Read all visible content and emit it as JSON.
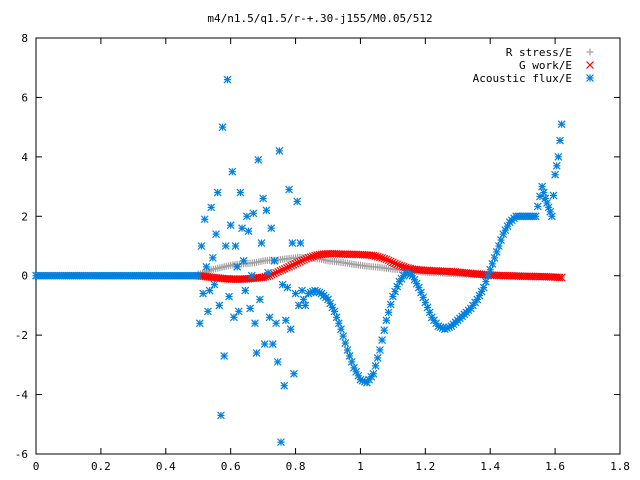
{
  "chart_data": {
    "type": "scatter",
    "title": "m4/n1.5/q1.5/r-+.30-j155/M0.05/512",
    "xlabel": "",
    "ylabel": "",
    "xlim": [
      0,
      1.8
    ],
    "ylim": [
      -6,
      8
    ],
    "x_ticks": [
      "0",
      "0.2",
      "0.4",
      "0.6",
      "0.8",
      "1",
      "1.2",
      "1.4",
      "1.6",
      "1.8"
    ],
    "y_ticks": [
      "-6",
      "-4",
      "-2",
      "0",
      "2",
      "4",
      "6",
      "8"
    ],
    "legend_position": "top-right",
    "grid": false,
    "series": [
      {
        "name": "R stress/E",
        "marker": "+",
        "color": "#a0a0a0",
        "points": [
          [
            0.5,
            0.05
          ],
          [
            0.52,
            0.1
          ],
          [
            0.54,
            0.2
          ],
          [
            0.56,
            0.25
          ],
          [
            0.58,
            0.3
          ],
          [
            0.6,
            0.35
          ],
          [
            0.62,
            0.38
          ],
          [
            0.64,
            0.4
          ],
          [
            0.66,
            0.42
          ],
          [
            0.68,
            0.45
          ],
          [
            0.7,
            0.5
          ],
          [
            0.72,
            0.52
          ],
          [
            0.74,
            0.52
          ],
          [
            0.76,
            0.55
          ],
          [
            0.78,
            0.58
          ],
          [
            0.8,
            0.6
          ],
          [
            0.82,
            0.62
          ],
          [
            0.84,
            0.6
          ],
          [
            0.86,
            0.58
          ],
          [
            0.88,
            0.55
          ],
          [
            0.9,
            0.5
          ],
          [
            0.92,
            0.48
          ],
          [
            0.94,
            0.45
          ],
          [
            0.96,
            0.42
          ],
          [
            0.98,
            0.38
          ],
          [
            1.0,
            0.35
          ],
          [
            1.02,
            0.32
          ],
          [
            1.04,
            0.3
          ],
          [
            1.06,
            0.28
          ],
          [
            1.08,
            0.25
          ],
          [
            1.1,
            0.22
          ],
          [
            1.12,
            0.2
          ],
          [
            1.14,
            0.18
          ],
          [
            1.16,
            0.16
          ],
          [
            1.18,
            0.14
          ],
          [
            1.2,
            0.12
          ],
          [
            1.22,
            0.1
          ],
          [
            1.24,
            0.1
          ],
          [
            1.26,
            0.08
          ],
          [
            1.28,
            0.07
          ],
          [
            1.3,
            0.06
          ],
          [
            1.32,
            0.05
          ],
          [
            1.34,
            0.05
          ],
          [
            1.36,
            0.04
          ],
          [
            1.38,
            0.03
          ],
          [
            1.4,
            0.02
          ],
          [
            1.42,
            0.02
          ],
          [
            1.44,
            0.01
          ],
          [
            1.46,
            0.0
          ],
          [
            1.48,
            0.0
          ],
          [
            1.5,
            -0.01
          ],
          [
            1.52,
            -0.02
          ],
          [
            1.54,
            -0.02
          ],
          [
            1.56,
            -0.03
          ],
          [
            1.58,
            -0.03
          ],
          [
            1.6,
            -0.04
          ],
          [
            1.62,
            -0.05
          ]
        ]
      },
      {
        "name": "G work/E",
        "marker": "x",
        "color": "#ff0000",
        "points": [
          [
            0.5,
            0.0
          ],
          [
            0.54,
            -0.05
          ],
          [
            0.58,
            -0.1
          ],
          [
            0.62,
            -0.12
          ],
          [
            0.66,
            -0.1
          ],
          [
            0.7,
            -0.05
          ],
          [
            0.72,
            0.0
          ],
          [
            0.74,
            0.1
          ],
          [
            0.76,
            0.2
          ],
          [
            0.78,
            0.3
          ],
          [
            0.8,
            0.4
          ],
          [
            0.82,
            0.5
          ],
          [
            0.84,
            0.6
          ],
          [
            0.86,
            0.68
          ],
          [
            0.88,
            0.72
          ],
          [
            0.9,
            0.74
          ],
          [
            0.92,
            0.74
          ],
          [
            0.94,
            0.73
          ],
          [
            0.96,
            0.72
          ],
          [
            0.98,
            0.72
          ],
          [
            1.0,
            0.71
          ],
          [
            1.02,
            0.7
          ],
          [
            1.04,
            0.68
          ],
          [
            1.06,
            0.62
          ],
          [
            1.08,
            0.55
          ],
          [
            1.1,
            0.45
          ],
          [
            1.12,
            0.35
          ],
          [
            1.14,
            0.28
          ],
          [
            1.16,
            0.22
          ],
          [
            1.18,
            0.2
          ],
          [
            1.2,
            0.18
          ],
          [
            1.22,
            0.17
          ],
          [
            1.24,
            0.16
          ],
          [
            1.26,
            0.15
          ],
          [
            1.28,
            0.14
          ],
          [
            1.3,
            0.12
          ],
          [
            1.32,
            0.1
          ],
          [
            1.34,
            0.08
          ],
          [
            1.36,
            0.06
          ],
          [
            1.38,
            0.04
          ],
          [
            1.4,
            0.02
          ],
          [
            1.42,
            0.01
          ],
          [
            1.44,
            0.0
          ],
          [
            1.46,
            0.0
          ],
          [
            1.48,
            -0.01
          ],
          [
            1.5,
            -0.02
          ],
          [
            1.52,
            -0.02
          ],
          [
            1.54,
            -0.03
          ],
          [
            1.56,
            -0.03
          ],
          [
            1.58,
            -0.04
          ],
          [
            1.6,
            -0.05
          ],
          [
            1.62,
            -0.06
          ]
        ]
      },
      {
        "name": "Acoustic flux/E",
        "marker": "*",
        "color": "#0080e0",
        "points": [
          [
            0.0,
            0.0
          ],
          [
            0.05,
            0.0
          ],
          [
            0.1,
            0.0
          ],
          [
            0.15,
            0.0
          ],
          [
            0.2,
            0.0
          ],
          [
            0.25,
            0.0
          ],
          [
            0.3,
            0.0
          ],
          [
            0.35,
            0.0
          ],
          [
            0.4,
            0.0
          ],
          [
            0.45,
            0.0
          ],
          [
            0.5,
            0.0
          ],
          [
            0.505,
            -1.6
          ],
          [
            0.51,
            1.0
          ],
          [
            0.515,
            -0.6
          ],
          [
            0.52,
            1.9
          ],
          [
            0.525,
            0.3
          ],
          [
            0.53,
            -1.2
          ],
          [
            0.535,
            -0.5
          ],
          [
            0.54,
            2.3
          ],
          [
            0.545,
            0.6
          ],
          [
            0.55,
            -0.3
          ],
          [
            0.555,
            1.4
          ],
          [
            0.56,
            2.8
          ],
          [
            0.565,
            -1.0
          ],
          [
            0.57,
            -4.7
          ],
          [
            0.575,
            5.0
          ],
          [
            0.58,
            -2.7
          ],
          [
            0.585,
            1.0
          ],
          [
            0.59,
            6.6
          ],
          [
            0.595,
            -0.7
          ],
          [
            0.6,
            1.7
          ],
          [
            0.605,
            3.5
          ],
          [
            0.61,
            -1.4
          ],
          [
            0.615,
            1.0
          ],
          [
            0.62,
            0.3
          ],
          [
            0.625,
            -1.2
          ],
          [
            0.63,
            2.8
          ],
          [
            0.635,
            1.6
          ],
          [
            0.64,
            0.5
          ],
          [
            0.645,
            -0.5
          ],
          [
            0.65,
            2.0
          ],
          [
            0.655,
            1.5
          ],
          [
            0.66,
            -1.1
          ],
          [
            0.665,
            0.0
          ],
          [
            0.67,
            2.1
          ],
          [
            0.675,
            -1.6
          ],
          [
            0.68,
            -2.6
          ],
          [
            0.685,
            3.9
          ],
          [
            0.69,
            -0.8
          ],
          [
            0.695,
            1.1
          ],
          [
            0.7,
            2.6
          ],
          [
            0.705,
            -2.3
          ],
          [
            0.71,
            2.2
          ],
          [
            0.715,
            0.1
          ],
          [
            0.72,
            -1.4
          ],
          [
            0.725,
            1.6
          ],
          [
            0.73,
            -2.3
          ],
          [
            0.735,
            0.5
          ],
          [
            0.74,
            -1.6
          ],
          [
            0.745,
            -2.9
          ],
          [
            0.75,
            4.2
          ],
          [
            0.755,
            -5.6
          ],
          [
            0.76,
            -0.3
          ],
          [
            0.765,
            -3.7
          ],
          [
            0.77,
            -1.5
          ],
          [
            0.775,
            -0.4
          ],
          [
            0.78,
            2.9
          ],
          [
            0.785,
            -1.8
          ],
          [
            0.79,
            1.1
          ],
          [
            0.795,
            -3.3
          ],
          [
            0.8,
            -0.6
          ],
          [
            0.805,
            2.5
          ],
          [
            0.81,
            -1.0
          ],
          [
            0.815,
            1.1
          ],
          [
            0.82,
            -0.5
          ],
          [
            0.825,
            -0.8
          ],
          [
            0.83,
            -1.0
          ],
          [
            0.84,
            -0.6
          ],
          [
            0.86,
            -0.5
          ],
          [
            0.88,
            -0.6
          ],
          [
            0.9,
            -0.8
          ],
          [
            0.92,
            -1.2
          ],
          [
            0.94,
            -1.8
          ],
          [
            0.96,
            -2.5
          ],
          [
            0.98,
            -3.1
          ],
          [
            1.0,
            -3.5
          ],
          [
            1.02,
            -3.6
          ],
          [
            1.04,
            -3.3
          ],
          [
            1.06,
            -2.5
          ],
          [
            1.08,
            -1.5
          ],
          [
            1.1,
            -0.7
          ],
          [
            1.12,
            -0.2
          ],
          [
            1.14,
            0.1
          ],
          [
            1.16,
            0.0
          ],
          [
            1.18,
            -0.4
          ],
          [
            1.2,
            -0.9
          ],
          [
            1.22,
            -1.4
          ],
          [
            1.24,
            -1.7
          ],
          [
            1.26,
            -1.8
          ],
          [
            1.28,
            -1.7
          ],
          [
            1.3,
            -1.5
          ],
          [
            1.32,
            -1.3
          ],
          [
            1.34,
            -1.1
          ],
          [
            1.36,
            -0.8
          ],
          [
            1.38,
            -0.4
          ],
          [
            1.4,
            0.2
          ],
          [
            1.42,
            0.8
          ],
          [
            1.44,
            1.4
          ],
          [
            1.46,
            1.8
          ],
          [
            1.48,
            2.0
          ],
          [
            1.5,
            2.0
          ],
          [
            1.52,
            2.0
          ],
          [
            1.54,
            2.0
          ],
          [
            1.56,
            3.0
          ],
          [
            1.57,
            2.6
          ],
          [
            1.58,
            2.3
          ],
          [
            1.59,
            2.0
          ],
          [
            1.6,
            3.4
          ],
          [
            1.61,
            4.0
          ],
          [
            1.62,
            5.1
          ]
        ]
      }
    ]
  }
}
